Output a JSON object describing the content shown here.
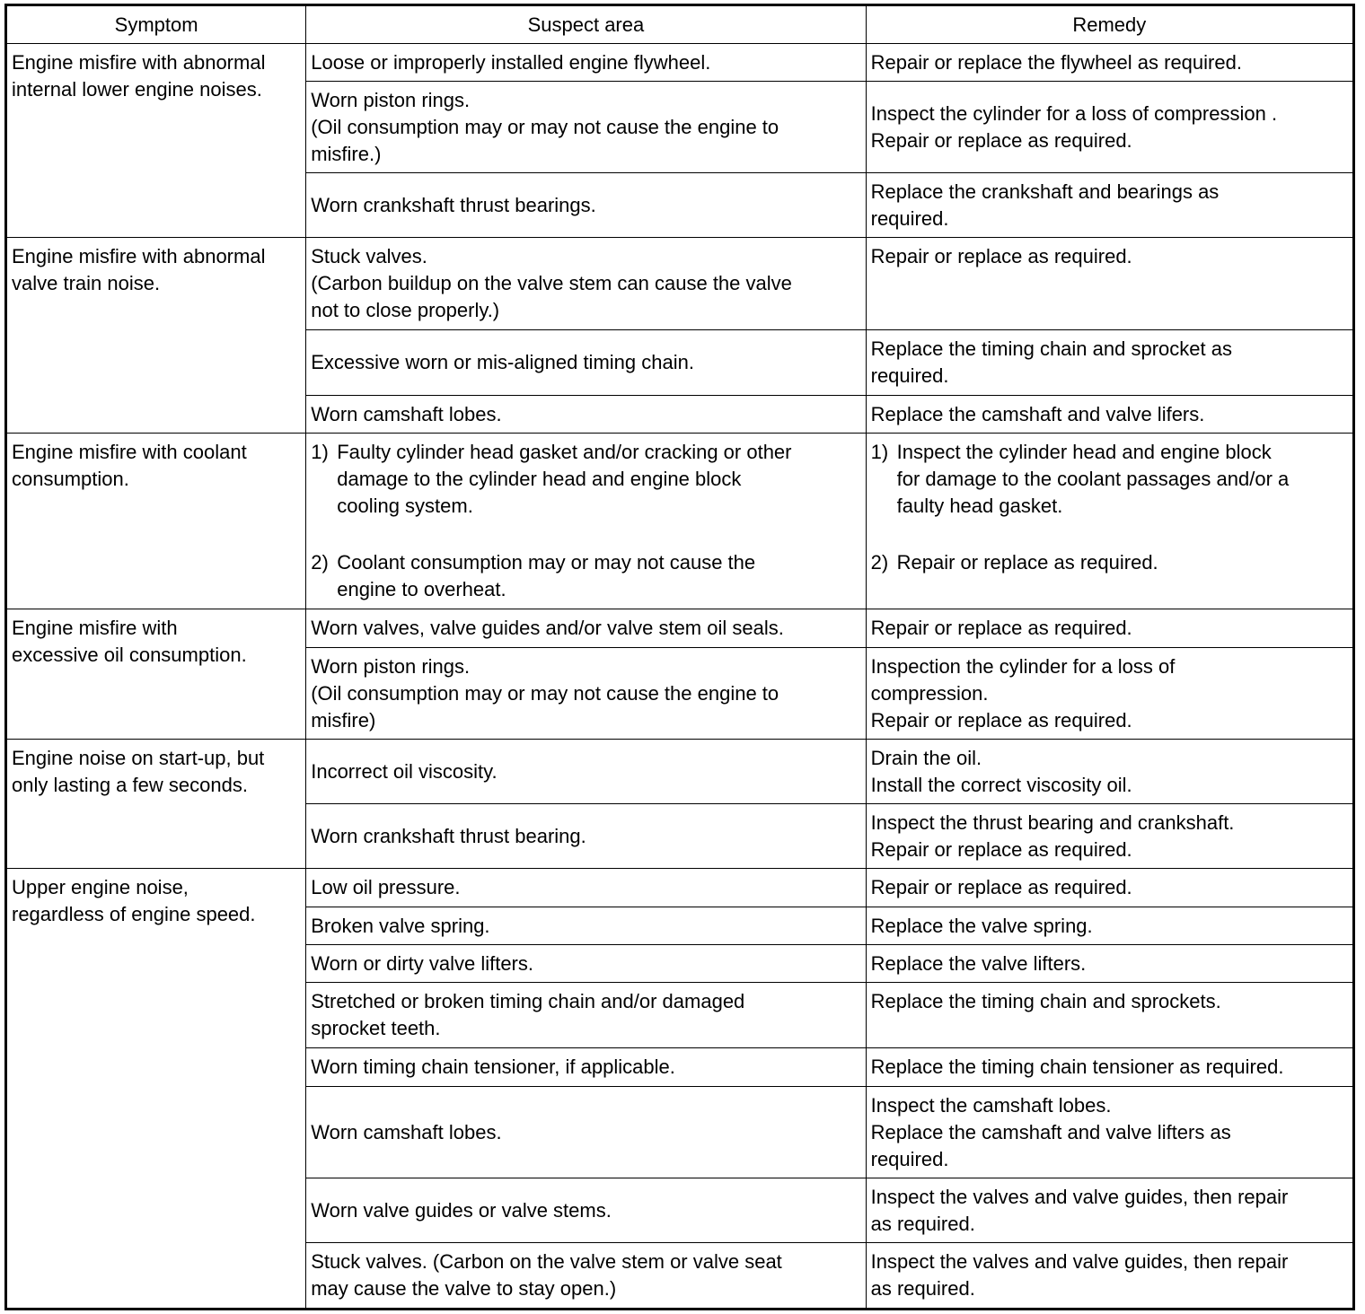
{
  "headers": [
    "Symptom",
    "Suspect area",
    "Remedy"
  ],
  "groups": [
    {
      "symptom": "Engine misfire with abnormal\ninternal lower engine noises.",
      "rows": [
        {
          "suspect": "Loose or improperly installed engine flywheel.",
          "remedy": "Repair or replace the flywheel as required."
        },
        {
          "suspect": "Worn piston rings.\n(Oil consumption may or may not cause the engine to\nmisfire.)",
          "remedy": "Inspect the cylinder for a loss of compression .\nRepair or replace as required."
        },
        {
          "suspect": "Worn crankshaft thrust bearings.",
          "remedy": "Replace the crankshaft and bearings as\nrequired."
        }
      ]
    },
    {
      "symptom": "Engine misfire with abnormal\nvalve train noise.",
      "rows": [
        {
          "suspect": "Stuck valves.\n(Carbon buildup on the valve stem can cause the valve\nnot to close properly.)",
          "remedy": "Repair or replace as required."
        },
        {
          "suspect": "Excessive worn or mis-aligned timing chain.",
          "remedy": "Replace the timing chain and sprocket as\nrequired."
        },
        {
          "suspect": "Worn camshaft lobes.",
          "remedy": "Replace the camshaft and valve lifers."
        }
      ]
    },
    {
      "symptom": "Engine misfire with coolant\nconsumption.",
      "rows": [
        {
          "suspect_items": [
            {
              "num": "1)",
              "text": "Faulty cylinder head gasket and/or cracking or other\ndamage to the cylinder head and engine block\ncooling system."
            },
            {
              "num": "2)",
              "text": "Coolant consumption may or may not cause the\nengine to overheat."
            }
          ],
          "remedy_items": [
            {
              "num": "1)",
              "text": "Inspect the cylinder head and engine block\nfor damage to the coolant passages and/or a\nfaulty head gasket."
            },
            {
              "num": "2)",
              "text": "Repair or replace as required."
            }
          ]
        }
      ]
    },
    {
      "symptom": "Engine misfire with\nexcessive oil consumption.",
      "rows": [
        {
          "suspect": "Worn valves, valve guides and/or valve stem oil seals.",
          "remedy": "Repair or replace as required."
        },
        {
          "suspect": "Worn piston rings.\n(Oil consumption may or may not cause the engine to\nmisfire)",
          "remedy": "Inspection the cylinder for a loss of\ncompression.\nRepair or replace as required."
        }
      ]
    },
    {
      "symptom": "Engine noise on start-up, but\nonly lasting a few seconds.",
      "rows": [
        {
          "suspect": "Incorrect oil viscosity.",
          "remedy": "Drain the oil.\nInstall the correct viscosity oil."
        },
        {
          "suspect": "Worn crankshaft thrust bearing.",
          "remedy": "Inspect the thrust bearing and crankshaft.\nRepair or replace as required."
        }
      ]
    },
    {
      "symptom": "Upper engine noise,\nregardless of engine speed.",
      "rows": [
        {
          "suspect": "Low oil pressure.",
          "remedy": "Repair or replace as required."
        },
        {
          "suspect": "Broken valve spring.",
          "remedy": "Replace the valve spring."
        },
        {
          "suspect": "Worn or dirty valve lifters.",
          "remedy": "Replace the valve lifters."
        },
        {
          "suspect": "Stretched or broken timing chain and/or damaged\nsprocket teeth.",
          "remedy": "Replace the timing chain and sprockets."
        },
        {
          "suspect": "Worn timing chain tensioner, if applicable.",
          "remedy": "Replace the timing chain tensioner as required."
        },
        {
          "suspect": "Worn camshaft lobes.",
          "remedy": "Inspect the camshaft lobes.\nReplace the camshaft and valve lifters as\nrequired."
        },
        {
          "suspect": "Worn valve guides or valve stems.",
          "remedy": "Inspect the valves and valve guides, then repair\nas required."
        },
        {
          "suspect": "Stuck valves. (Carbon on the valve stem or valve seat\nmay cause the valve to stay open.)",
          "remedy": "Inspect the valves and valve guides, then repair\nas required."
        }
      ]
    }
  ]
}
